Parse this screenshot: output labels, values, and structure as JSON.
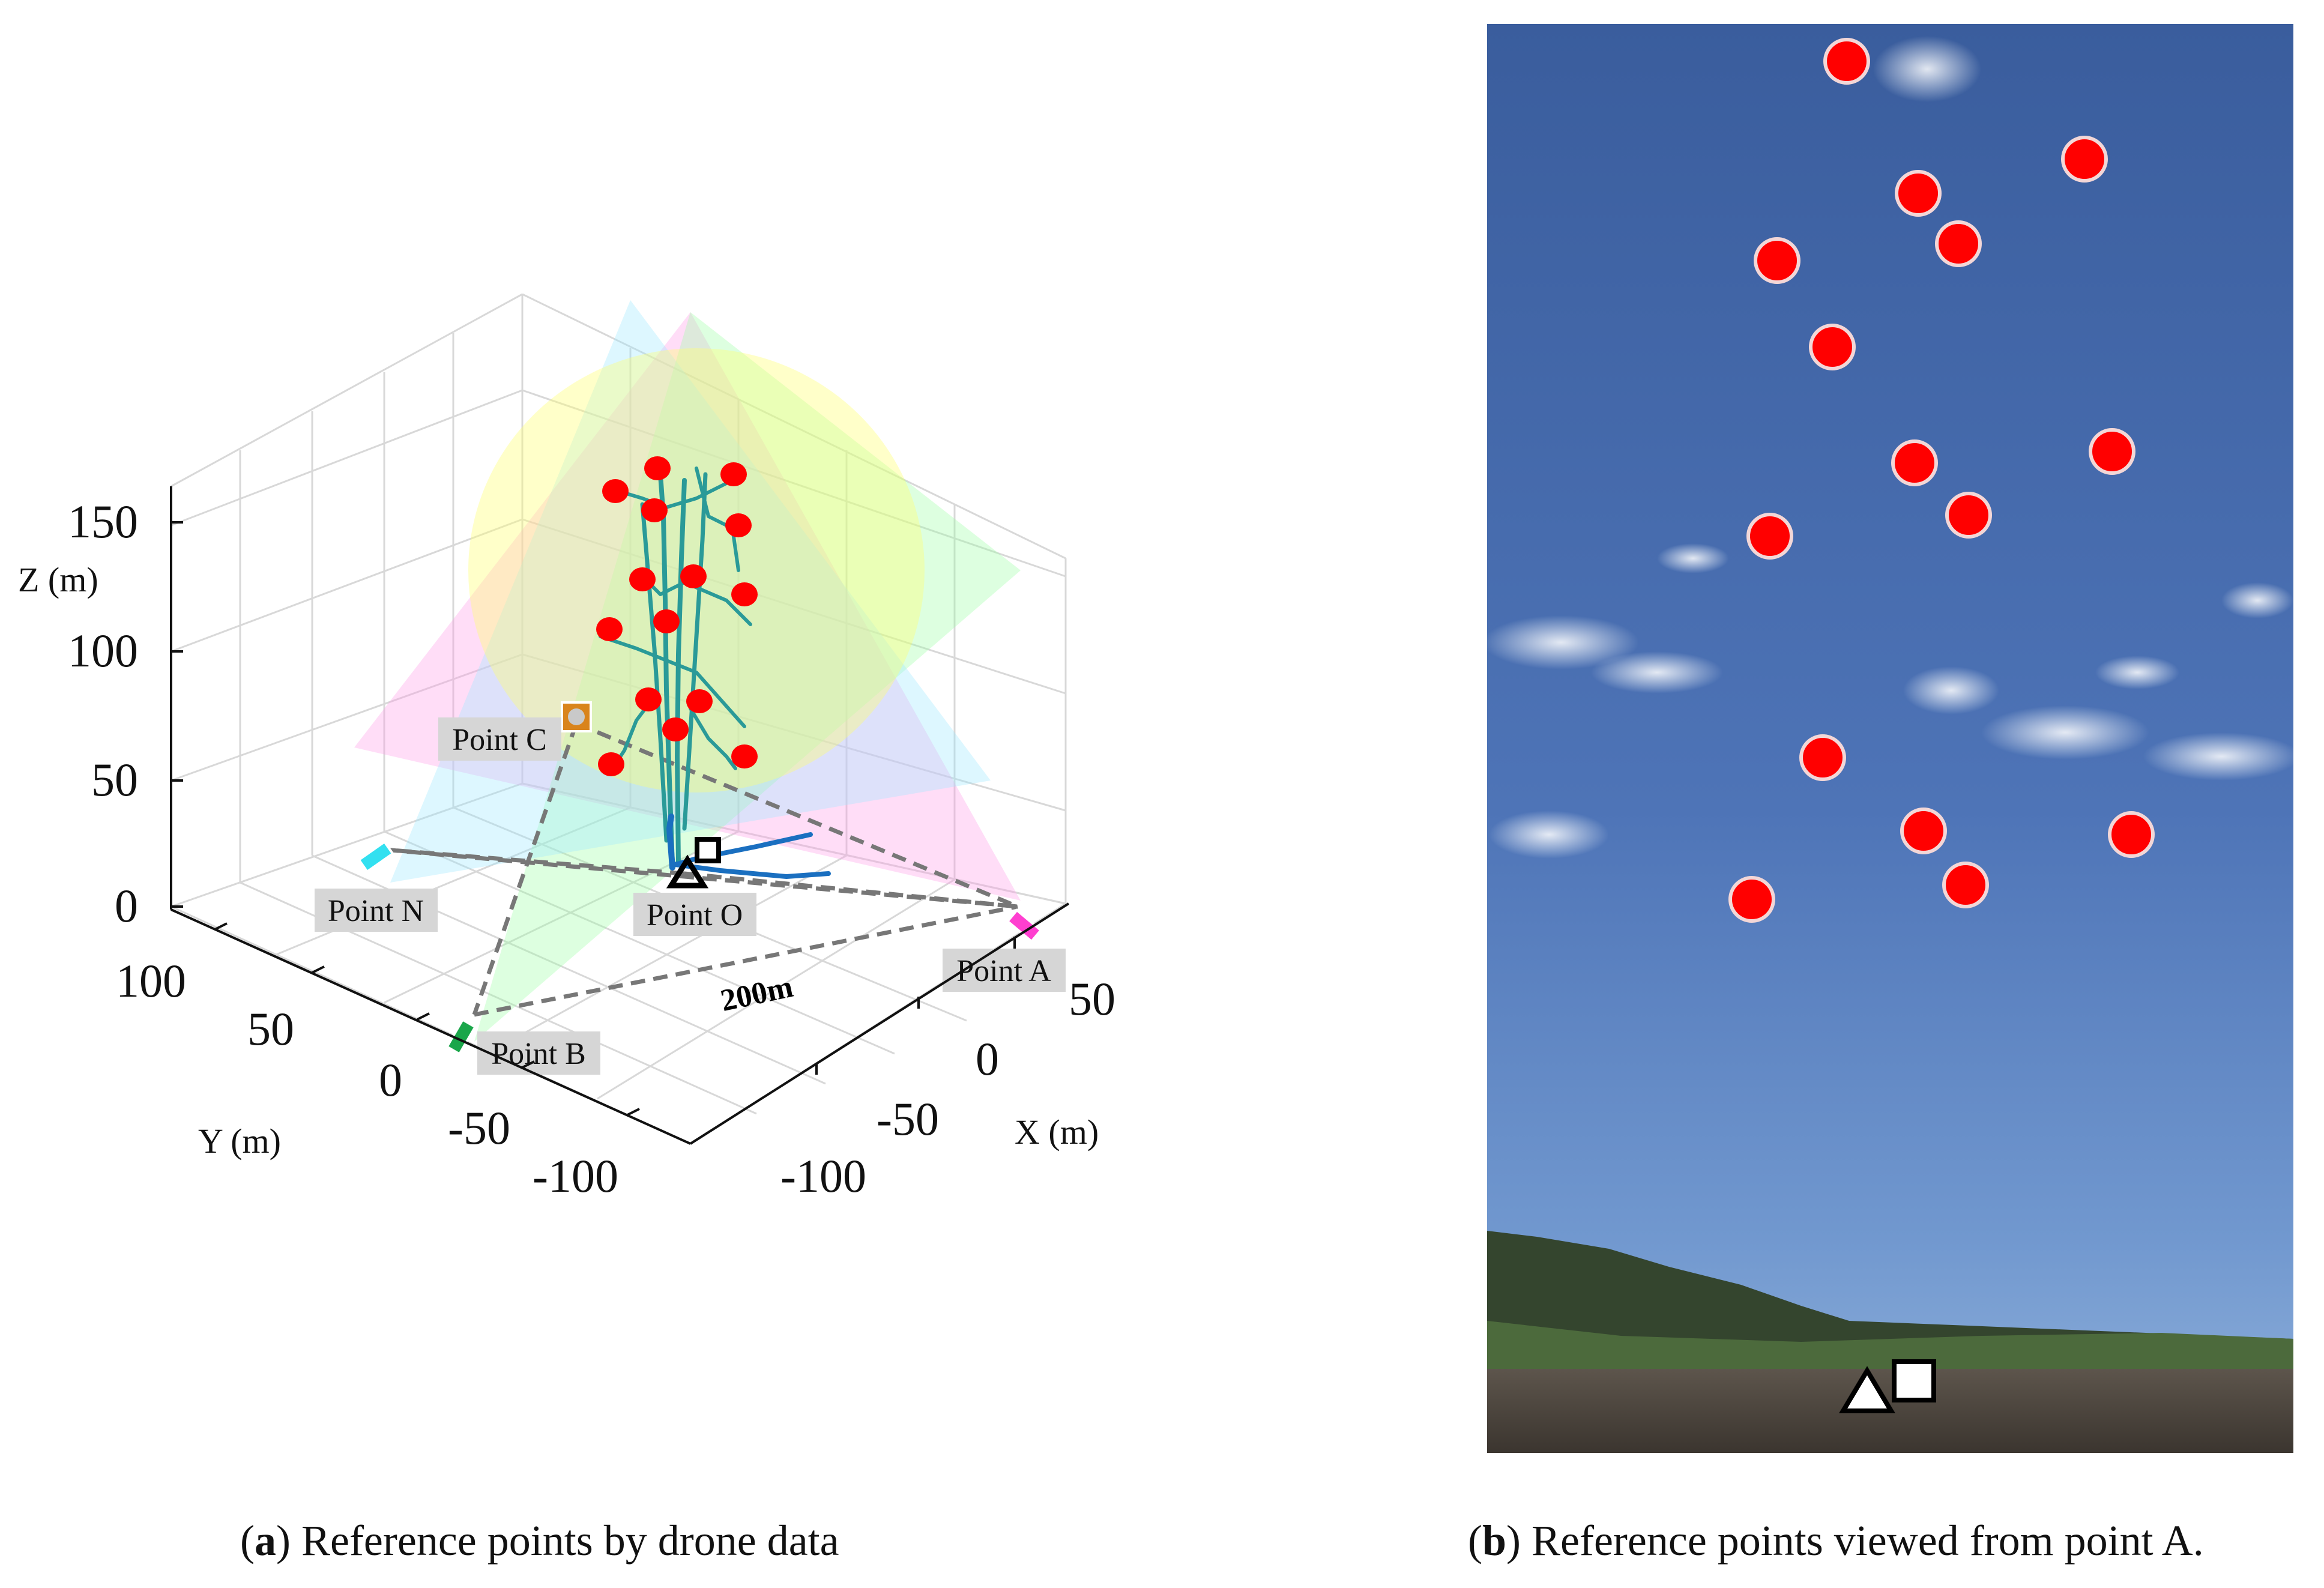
{
  "panel_a": {
    "axes": {
      "z_label": "Z (m)",
      "y_label": "Y (m)",
      "x_label": "X (m)",
      "z_ticks": [
        "150",
        "100",
        "50",
        "0"
      ],
      "y_ticks": [
        "100",
        "50",
        "0",
        "-50",
        "-100"
      ],
      "x_ticks": [
        "50",
        "0",
        "-50",
        "-100"
      ]
    },
    "points": {
      "a": "Point A",
      "b": "Point B",
      "c": "Point C",
      "n": "Point N",
      "o": "Point O"
    },
    "distance_label": "200m",
    "caption": {
      "letter": "a",
      "text": "Reference points by drone data"
    }
  },
  "panel_b": {
    "caption": {
      "letter": "b",
      "text": "Reference points viewed from point A."
    }
  },
  "colors": {
    "reference_point": "#ff0000",
    "trajectory_teal": "#2a9a98",
    "trajectory_blue": "#1a6fc0",
    "point_a": "#ff3fd0",
    "point_b": "#1aa64a",
    "point_c": "#d9841c",
    "point_n": "#32e0f0",
    "sky_top": "#3b5f9f",
    "sky_bottom": "#6a93cf"
  }
}
